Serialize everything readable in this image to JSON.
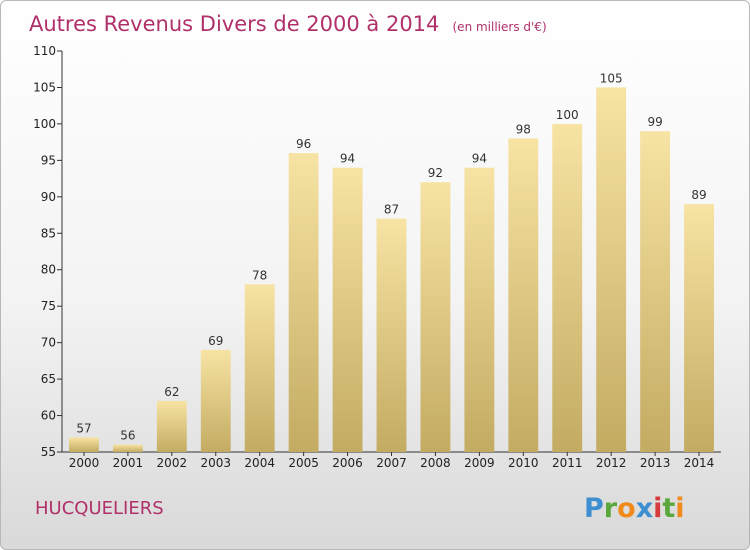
{
  "chart_data": {
    "type": "bar",
    "title": "Autres Revenus Divers de 2000 à 2014",
    "unit_note": "(en milliers d'€)",
    "categories": [
      "2000",
      "2001",
      "2002",
      "2003",
      "2004",
      "2005",
      "2006",
      "2007",
      "2008",
      "2009",
      "2010",
      "2011",
      "2012",
      "2013",
      "2014"
    ],
    "values": [
      57,
      56,
      62,
      69,
      78,
      96,
      94,
      87,
      92,
      94,
      98,
      100,
      105,
      99,
      89
    ],
    "ylim": [
      55,
      110
    ],
    "yticks": [
      55,
      60,
      65,
      70,
      75,
      80,
      85,
      90,
      95,
      100,
      105,
      110
    ],
    "xlabel": "",
    "ylabel": "",
    "grid": false,
    "bar_color_top": "#f7e3a3",
    "bar_color_bottom": "#c3ab62",
    "title_color": "#b0306a"
  },
  "commune": "HUCQUELIERS",
  "logo": {
    "letters": [
      "P",
      "r",
      "o",
      "x",
      "i",
      "t",
      "i"
    ],
    "colors": [
      "#3d8fd1",
      "#5aa83c",
      "#f08a1c",
      "#3d8fd1",
      "#d63a3a",
      "#5aa83c",
      "#f08a1c"
    ]
  }
}
